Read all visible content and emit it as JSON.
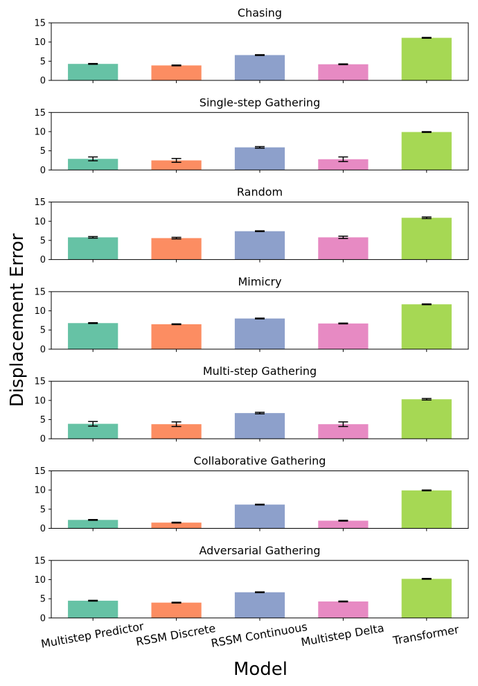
{
  "chart_data": {
    "type": "bar",
    "xlabel": "Model",
    "ylabel": "Displacement Error",
    "categories": [
      "Multistep Predictor",
      "RSSM Discrete",
      "RSSM Continuous",
      "Multistep Delta",
      "Transformer"
    ],
    "colors": [
      "#66c2a5",
      "#fc8d62",
      "#8da0cb",
      "#e78ac3",
      "#a6d854"
    ],
    "ylim": [
      0,
      15
    ],
    "yticks": [
      0,
      5,
      10,
      15
    ],
    "grid": false,
    "panels": [
      {
        "title": "Chasing",
        "values": [
          4.3,
          3.9,
          6.6,
          4.2,
          11.1
        ],
        "errors": [
          0.1,
          0.1,
          0.1,
          0.1,
          0.1
        ]
      },
      {
        "title": "Single-step Gathering",
        "values": [
          2.9,
          2.5,
          5.9,
          2.8,
          9.9
        ],
        "errors": [
          0.5,
          0.5,
          0.2,
          0.6,
          0.1
        ]
      },
      {
        "title": "Random",
        "values": [
          5.8,
          5.6,
          7.4,
          5.8,
          10.9
        ],
        "errors": [
          0.2,
          0.2,
          0.1,
          0.3,
          0.2
        ]
      },
      {
        "title": "Mimicry",
        "values": [
          6.8,
          6.5,
          8.0,
          6.7,
          11.7
        ],
        "errors": [
          0.1,
          0.1,
          0.1,
          0.1,
          0.1
        ]
      },
      {
        "title": "Multi-step Gathering",
        "values": [
          3.9,
          3.8,
          6.7,
          3.8,
          10.3
        ],
        "errors": [
          0.6,
          0.6,
          0.2,
          0.6,
          0.2
        ]
      },
      {
        "title": "Collaborative Gathering",
        "values": [
          2.2,
          1.5,
          6.2,
          2.0,
          9.9
        ],
        "errors": [
          0.1,
          0.1,
          0.1,
          0.1,
          0.1
        ]
      },
      {
        "title": "Adversarial Gathering",
        "values": [
          4.5,
          4.0,
          6.7,
          4.3,
          10.2
        ],
        "errors": [
          0.1,
          0.1,
          0.1,
          0.1,
          0.1
        ]
      }
    ]
  }
}
